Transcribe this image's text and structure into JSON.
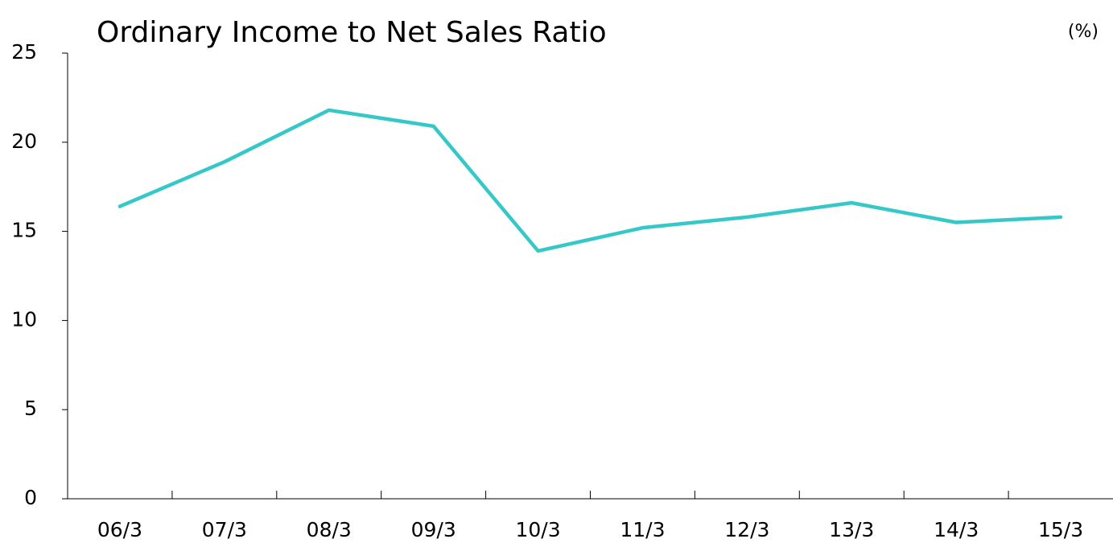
{
  "chart_data": {
    "type": "line",
    "title": "Ordinary Income to Net Sales Ratio",
    "unit": "(%)",
    "categories": [
      "06/3",
      "07/3",
      "08/3",
      "09/3",
      "10/3",
      "11/3",
      "12/3",
      "13/3",
      "14/3",
      "15/3"
    ],
    "series": [
      {
        "color": "#36c8c8",
        "values": [
          16.4,
          18.9,
          21.8,
          20.9,
          13.9,
          15.2,
          15.8,
          16.6,
          15.5,
          15.8
        ]
      }
    ],
    "ylim": [
      0,
      25
    ],
    "yticks": [
      0,
      5,
      10,
      15,
      20,
      25
    ],
    "grid": false
  }
}
